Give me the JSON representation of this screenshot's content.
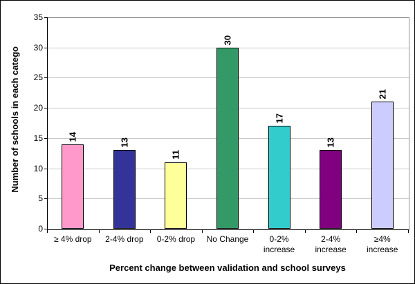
{
  "chart_data": {
    "type": "bar",
    "title": "",
    "xlabel": "Percent change between validation and school surveys",
    "ylabel": "Number of schools in each catego",
    "ylim": [
      0,
      35
    ],
    "ytick_step": 5,
    "yticks": [
      0,
      5,
      10,
      15,
      20,
      25,
      30,
      35
    ],
    "categories": [
      "≥ 4% drop",
      "2-4% drop",
      "0-2% drop",
      "No Change",
      "0-2% increase",
      "2-4% increase",
      "≥4% increase"
    ],
    "category_label_lines": [
      [
        "≥ 4% drop"
      ],
      [
        "2-4% drop"
      ],
      [
        "0-2% drop"
      ],
      [
        "No Change"
      ],
      [
        "0-2%",
        "increase"
      ],
      [
        "2-4%",
        "increase"
      ],
      [
        "≥4%",
        "increase"
      ]
    ],
    "values": [
      14,
      13,
      11,
      30,
      17,
      13,
      21
    ],
    "data_labels": [
      "14",
      "13",
      "11",
      "30",
      "17",
      "13",
      "21"
    ],
    "data_label_rotation": 90,
    "bar_colors": [
      "#FF99CC",
      "#333399",
      "#FFFF99",
      "#339966",
      "#33CCCC",
      "#800080",
      "#CCCCFF"
    ],
    "grid": "horizontal-only",
    "legend": "none",
    "colors": {
      "background": "#FFFFFF",
      "outer_border": "#000000",
      "axis_line": "#000000",
      "plot_border": "#909090",
      "gridline": "#C8C8C8",
      "bar_border": "#000000",
      "text": "#000000"
    }
  }
}
